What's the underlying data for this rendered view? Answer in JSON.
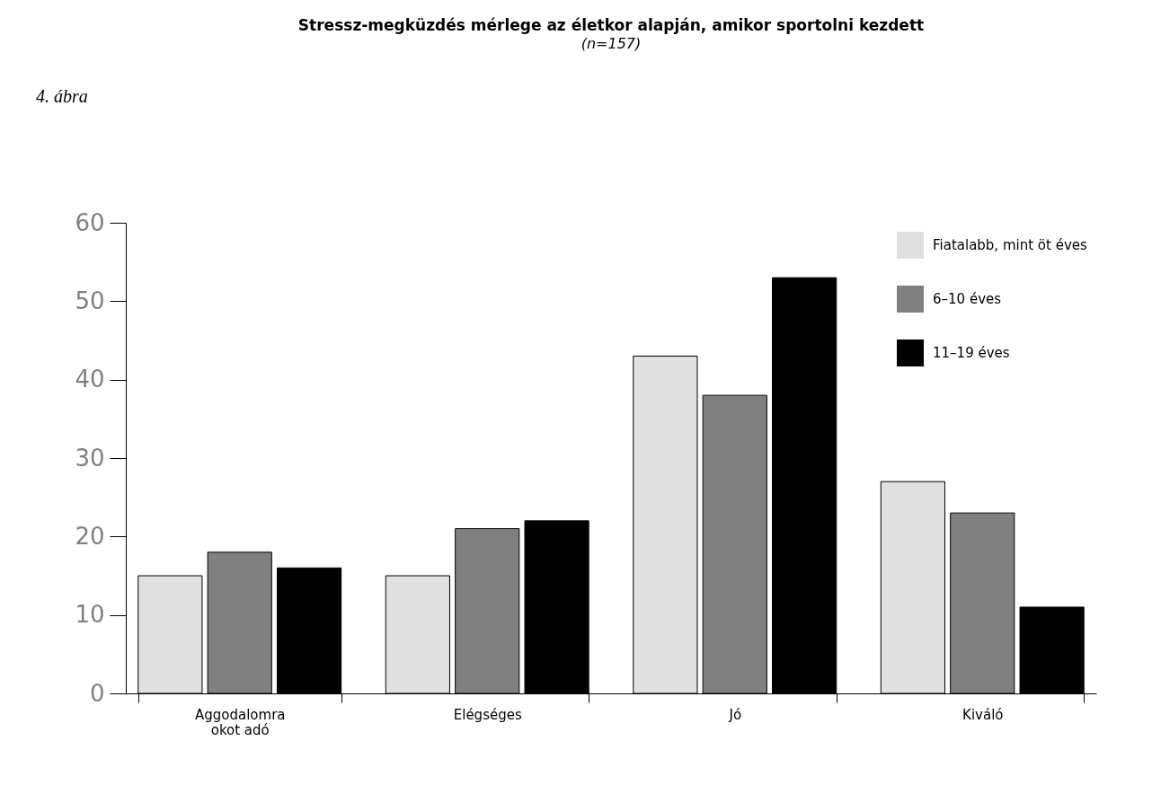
{
  "chart_data": {
    "type": "bar",
    "title": "Stressz-megküzdés mérlege az életkor alapján, amikor sportolni kezdett",
    "subtitle": "(n=157)",
    "annotations": [
      "4. ábra"
    ],
    "categories": [
      "Aggodalomra\nokot adó",
      "Elégséges",
      "Jó",
      "Kiváló"
    ],
    "series": [
      {
        "name": "Fiatalabb, mint öt éves",
        "color": "#e0e0e0",
        "values": [
          15,
          15,
          43,
          27
        ]
      },
      {
        "name": "6–10 éves",
        "color": "#808080",
        "values": [
          18,
          21,
          38,
          23
        ]
      },
      {
        "name": "11–19 éves",
        "color": "#000000",
        "values": [
          16,
          22,
          53,
          11
        ]
      }
    ],
    "ylim": [
      0,
      60
    ],
    "yticks": [
      0,
      10,
      20,
      30,
      40,
      50,
      60
    ],
    "grid": false,
    "legend": "top right"
  }
}
